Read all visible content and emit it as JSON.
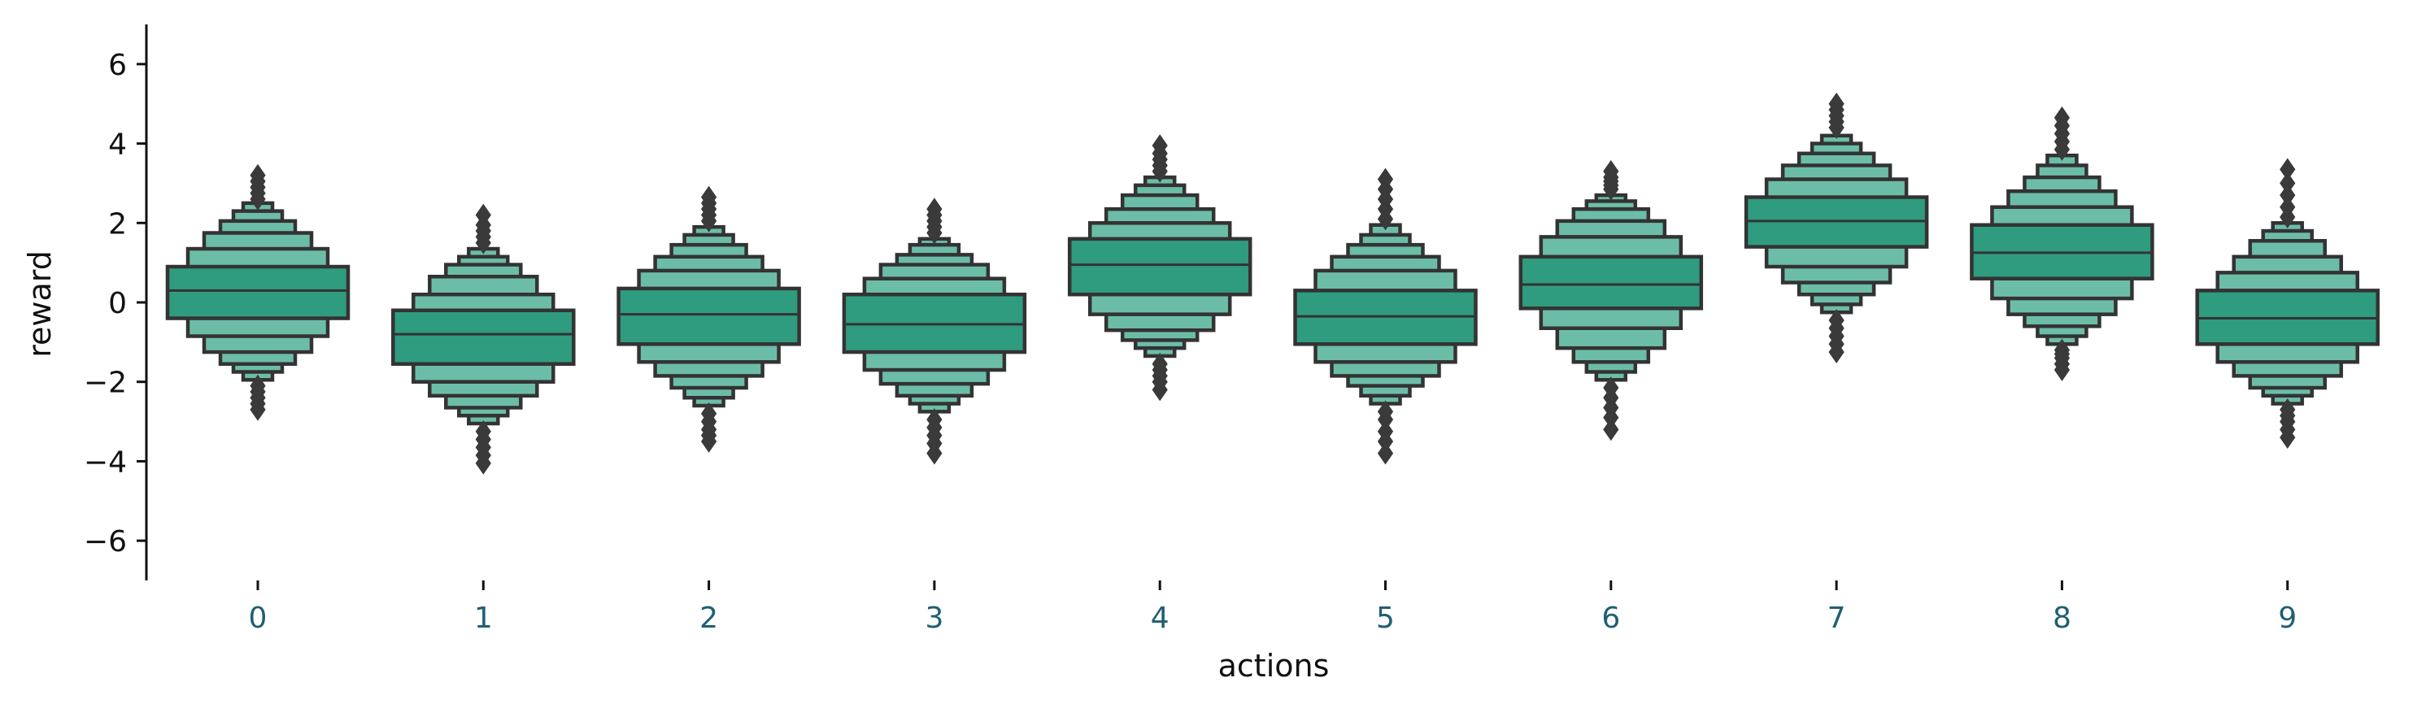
{
  "chart_data": {
    "type": "boxen",
    "title": "",
    "xlabel": "actions",
    "ylabel": "reward",
    "categories": [
      "0",
      "1",
      "2",
      "3",
      "4",
      "5",
      "6",
      "7",
      "8",
      "9"
    ],
    "ylim": [
      -7,
      7
    ],
    "yticks": [
      -6,
      -4,
      -2,
      0,
      2,
      4,
      6
    ],
    "ytick_labels": [
      "−6",
      "−4",
      "−2",
      "0",
      "2",
      "4",
      "6"
    ],
    "grid": false,
    "legend": "none",
    "colors": {
      "box_main": "#2f9b7f",
      "box_inner": "#6cbda8",
      "edge": "#333333",
      "outlier": "#3a3a3a",
      "xtick_text": "#1f5f73",
      "ytick_text": "#111111",
      "axis": "#111111"
    },
    "boxes": [
      {
        "median": 0.3,
        "levels": [
          [
            -0.4,
            0.9
          ],
          [
            -0.85,
            1.35
          ],
          [
            -1.25,
            1.75
          ],
          [
            -1.55,
            2.05
          ],
          [
            -1.75,
            2.3
          ],
          [
            -1.95,
            2.5
          ]
        ],
        "outliers": [
          -2.1,
          -2.25,
          -2.4,
          -2.55,
          -2.7,
          2.6,
          2.75,
          2.9,
          3.05,
          3.2
        ]
      },
      {
        "median": -0.8,
        "levels": [
          [
            -1.55,
            -0.2
          ],
          [
            -2.0,
            0.2
          ],
          [
            -2.35,
            0.65
          ],
          [
            -2.65,
            0.95
          ],
          [
            -2.85,
            1.15
          ],
          [
            -3.05,
            1.35
          ]
        ],
        "outliers": [
          -3.25,
          -3.45,
          -3.65,
          -3.85,
          -4.05,
          1.5,
          1.65,
          1.8,
          1.95,
          2.2
        ]
      },
      {
        "median": -0.3,
        "levels": [
          [
            -1.05,
            0.35
          ],
          [
            -1.5,
            0.8
          ],
          [
            -1.85,
            1.15
          ],
          [
            -2.15,
            1.45
          ],
          [
            -2.4,
            1.7
          ],
          [
            -2.6,
            1.9
          ]
        ],
        "outliers": [
          -2.8,
          -3.0,
          -3.2,
          -3.35,
          -3.5,
          2.05,
          2.2,
          2.35,
          2.5,
          2.65
        ]
      },
      {
        "median": -0.55,
        "levels": [
          [
            -1.25,
            0.2
          ],
          [
            -1.7,
            0.6
          ],
          [
            -2.05,
            0.95
          ],
          [
            -2.35,
            1.2
          ],
          [
            -2.55,
            1.45
          ],
          [
            -2.75,
            1.6
          ]
        ],
        "outliers": [
          -2.95,
          -3.15,
          -3.35,
          -3.55,
          -3.8,
          1.75,
          1.9,
          2.05,
          2.2,
          2.35
        ]
      },
      {
        "median": 0.95,
        "levels": [
          [
            0.2,
            1.6
          ],
          [
            -0.3,
            2.0
          ],
          [
            -0.7,
            2.35
          ],
          [
            -0.95,
            2.7
          ],
          [
            -1.15,
            2.95
          ],
          [
            -1.35,
            3.15
          ]
        ],
        "outliers": [
          -1.55,
          -1.7,
          -1.85,
          -2.0,
          -2.2,
          3.3,
          3.45,
          3.6,
          3.75,
          3.95
        ]
      },
      {
        "median": -0.35,
        "levels": [
          [
            -1.05,
            0.3
          ],
          [
            -1.5,
            0.8
          ],
          [
            -1.85,
            1.15
          ],
          [
            -2.1,
            1.45
          ],
          [
            -2.35,
            1.7
          ],
          [
            -2.55,
            1.95
          ]
        ],
        "outliers": [
          -2.75,
          -2.95,
          -3.25,
          -3.5,
          -3.8,
          2.1,
          2.35,
          2.6,
          2.85,
          3.1
        ]
      },
      {
        "median": 0.45,
        "levels": [
          [
            -0.15,
            1.15
          ],
          [
            -0.65,
            1.65
          ],
          [
            -1.15,
            2.05
          ],
          [
            -1.5,
            2.35
          ],
          [
            -1.75,
            2.55
          ],
          [
            -1.95,
            2.7
          ]
        ],
        "outliers": [
          -2.15,
          -2.4,
          -2.65,
          -2.9,
          -3.2,
          2.85,
          2.95,
          3.05,
          3.15,
          3.3
        ]
      },
      {
        "median": 2.05,
        "levels": [
          [
            1.4,
            2.65
          ],
          [
            0.9,
            3.1
          ],
          [
            0.5,
            3.45
          ],
          [
            0.2,
            3.75
          ],
          [
            -0.05,
            4.0
          ],
          [
            -0.25,
            4.2
          ]
        ],
        "outliers": [
          -0.45,
          -0.65,
          -0.85,
          -1.05,
          -1.25,
          4.4,
          4.55,
          4.7,
          4.85,
          5.0
        ]
      },
      {
        "median": 1.25,
        "levels": [
          [
            0.6,
            1.95
          ],
          [
            0.1,
            2.4
          ],
          [
            -0.3,
            2.8
          ],
          [
            -0.6,
            3.15
          ],
          [
            -0.85,
            3.45
          ],
          [
            -1.05,
            3.7
          ]
        ],
        "outliers": [
          -1.2,
          -1.3,
          -1.4,
          -1.55,
          -1.7,
          3.85,
          4.05,
          4.25,
          4.45,
          4.65
        ]
      },
      {
        "median": -0.4,
        "levels": [
          [
            -1.05,
            0.3
          ],
          [
            -1.5,
            0.75
          ],
          [
            -1.85,
            1.15
          ],
          [
            -2.15,
            1.55
          ],
          [
            -2.35,
            1.8
          ],
          [
            -2.55,
            2.0
          ]
        ],
        "outliers": [
          -2.7,
          -2.85,
          -3.0,
          -3.2,
          -3.4,
          2.15,
          2.4,
          2.7,
          3.0,
          3.35
        ]
      }
    ]
  }
}
